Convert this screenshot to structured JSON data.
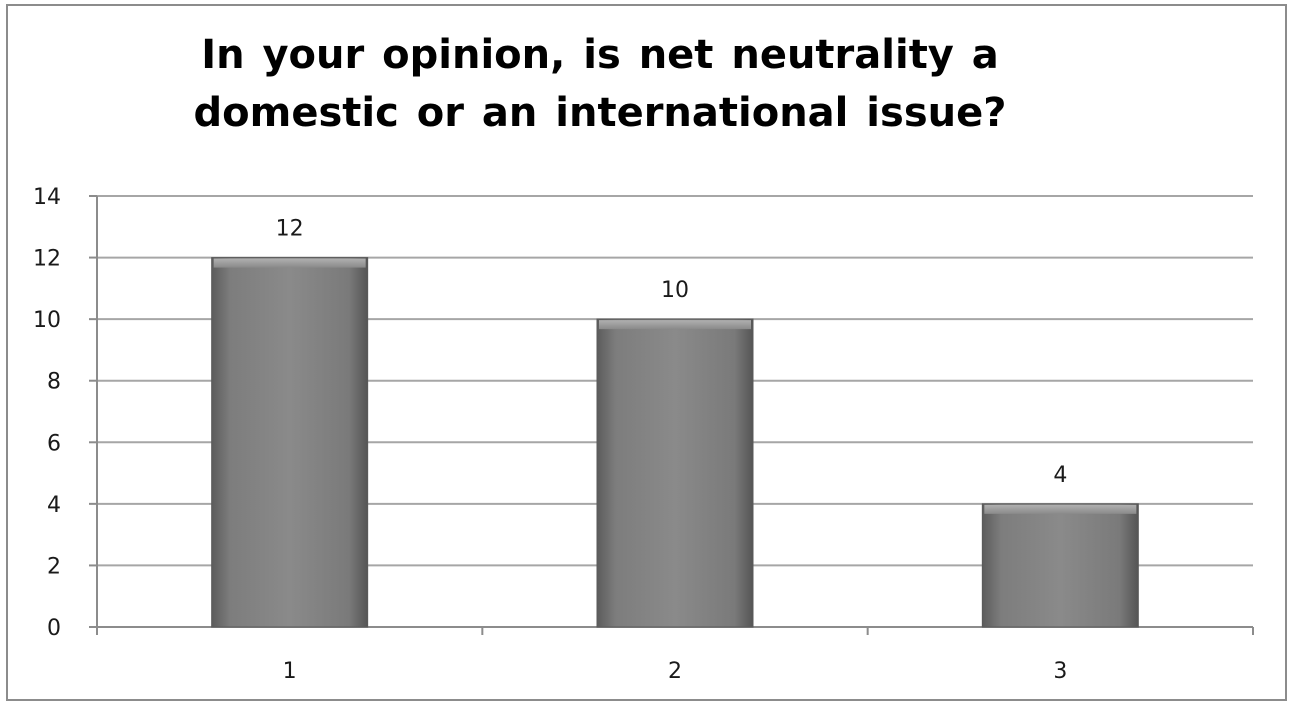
{
  "chart_data": {
    "type": "bar",
    "title": "In your opinion, is net neutrality a domestic or an international issue?",
    "title_lines": [
      "In your opinion, is net neutrality a",
      "domestic or an international issue?"
    ],
    "categories": [
      "1",
      "2",
      "3"
    ],
    "values": [
      12,
      10,
      4
    ],
    "data_labels": [
      "12",
      "10",
      "4"
    ],
    "ylim": [
      0,
      14
    ],
    "yticks": [
      0,
      2,
      4,
      6,
      8,
      10,
      12,
      14
    ],
    "ytick_labels": [
      "0",
      "2",
      "4",
      "6",
      "8",
      "10",
      "12",
      "14"
    ],
    "grid": true,
    "legend": "none",
    "bar_color": "#7a7a7a",
    "bar_edge_color": "#5a5a5a",
    "grid_color": "#a6a6a6",
    "axis_color": "#8c8c8c"
  }
}
